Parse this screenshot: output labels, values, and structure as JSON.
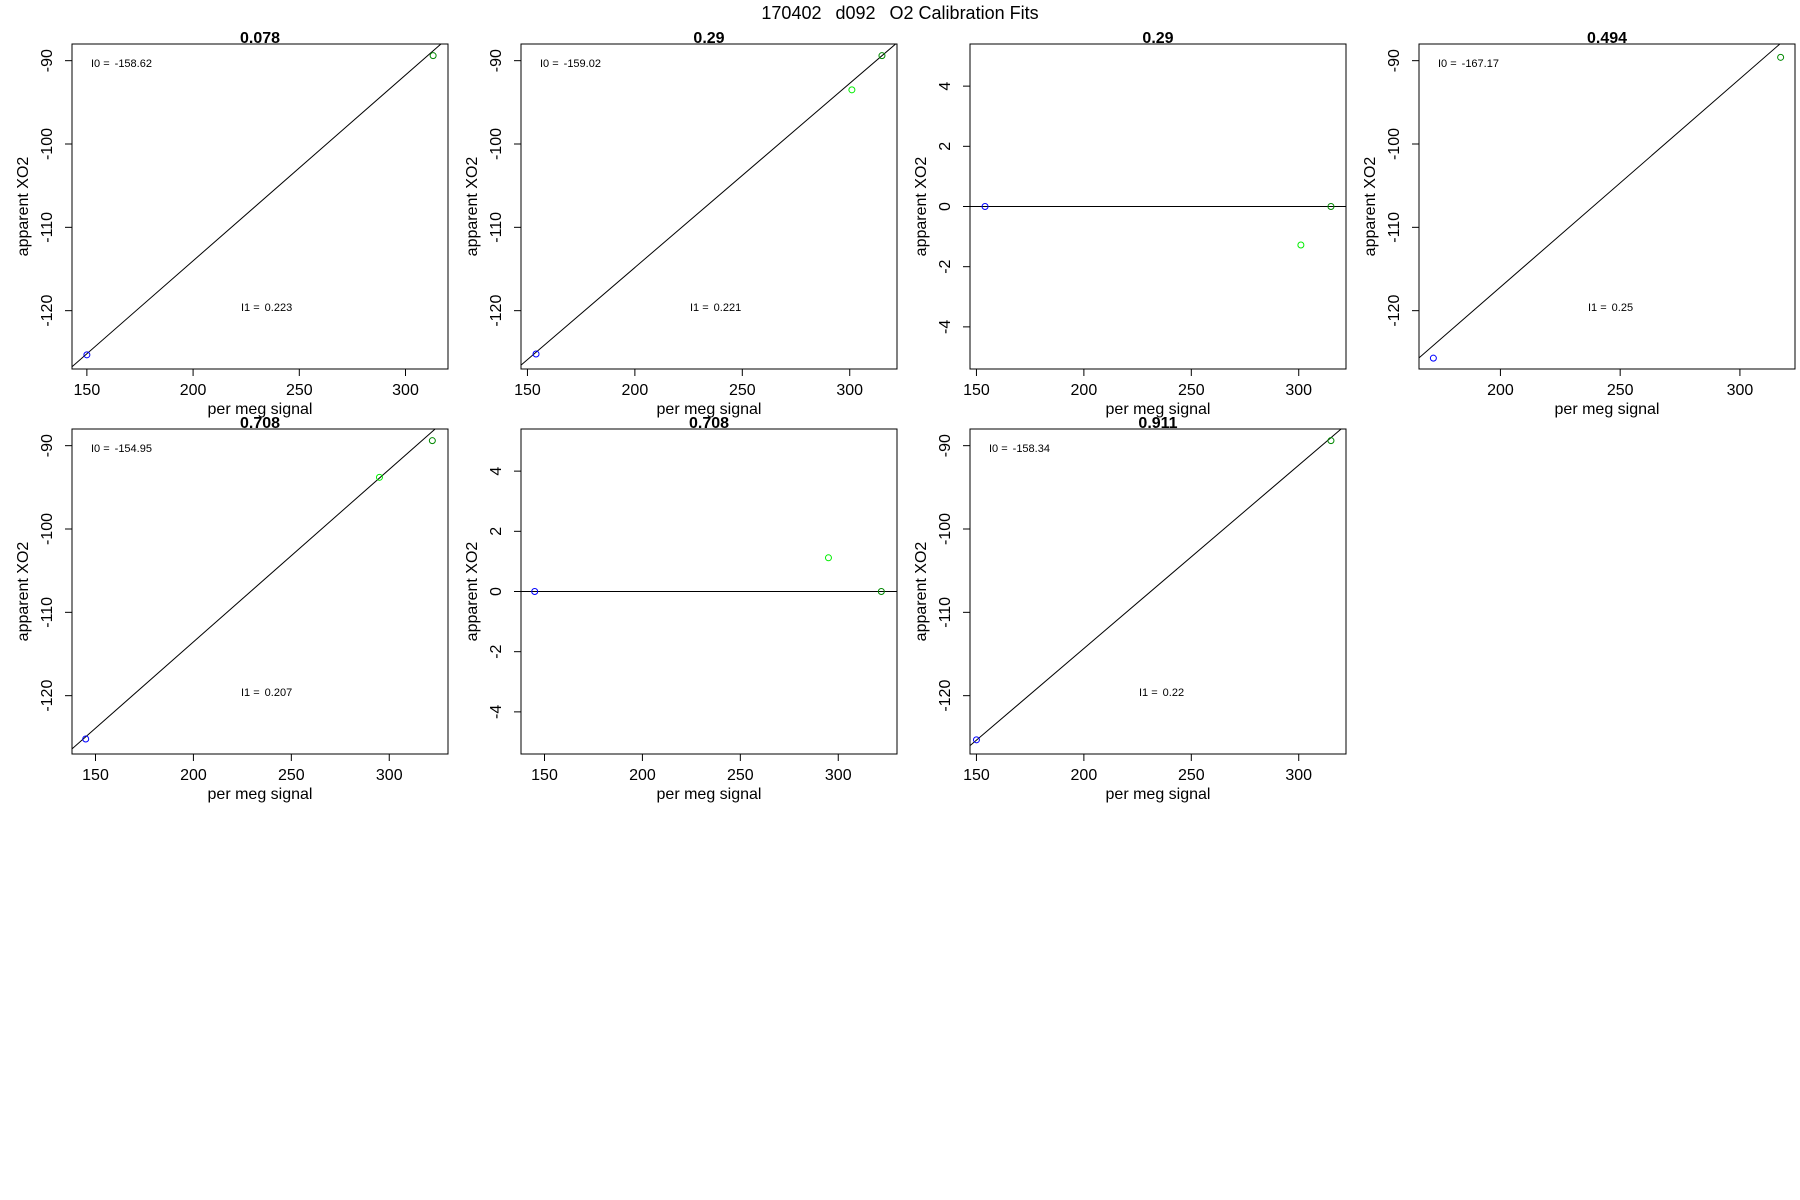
{
  "figure": {
    "title_parts": [
      "170402",
      "d092",
      "O2 Calibration Fits"
    ]
  },
  "colors": {
    "low_standard": "#0000ff",
    "high_standard": "#008800",
    "test_standard": "#00ee00",
    "axis": "#000000",
    "fit_line": "#000000"
  },
  "chart_data": [
    {
      "type": "scatter",
      "title": "0.078",
      "xlabel": "per meg signal",
      "ylabel": "apparent XO2",
      "xlim": [
        143,
        320
      ],
      "ylim": [
        -127,
        -88
      ],
      "xticks": [
        150,
        200,
        250,
        300
      ],
      "yticks": [
        -90,
        -100,
        -110,
        -120
      ],
      "points": [
        {
          "x": 150,
          "y": -125.3,
          "series": "low"
        },
        {
          "x": 313,
          "y": -89.4,
          "series": "high"
        }
      ],
      "fit_line": {
        "intercept": -158.62,
        "slope": 0.223
      },
      "annotations": [
        {
          "label": "I0 =",
          "value": "-158.62",
          "pos": "top-left"
        },
        {
          "label": "I1 =",
          "value": "0.223",
          "pos": "bottom-center"
        }
      ]
    },
    {
      "type": "scatter",
      "title": "0.29",
      "xlabel": "per meg signal",
      "ylabel": "apparent XO2",
      "xlim": [
        147,
        322
      ],
      "ylim": [
        -127,
        -88
      ],
      "xticks": [
        150,
        200,
        250,
        300
      ],
      "yticks": [
        -90,
        -100,
        -110,
        -120
      ],
      "points": [
        {
          "x": 154,
          "y": -125.2,
          "series": "low"
        },
        {
          "x": 301,
          "y": -93.5,
          "series": "test"
        },
        {
          "x": 315,
          "y": -89.4,
          "series": "high"
        }
      ],
      "fit_line": {
        "intercept": -159.02,
        "slope": 0.221
      },
      "annotations": [
        {
          "label": "I0 =",
          "value": "-159.02",
          "pos": "top-left"
        },
        {
          "label": "I1 =",
          "value": "0.221",
          "pos": "bottom-center"
        }
      ]
    },
    {
      "type": "scatter",
      "title": "0.29",
      "xlabel": "per meg signal",
      "ylabel": "apparent XO2",
      "xlim": [
        147,
        322
      ],
      "ylim": [
        -5.4,
        5.4
      ],
      "xticks": [
        150,
        200,
        250,
        300
      ],
      "yticks": [
        4,
        2,
        0,
        -2,
        -4
      ],
      "points": [
        {
          "x": 154,
          "y": 0,
          "series": "low"
        },
        {
          "x": 301,
          "y": -1.28,
          "series": "test"
        },
        {
          "x": 315,
          "y": 0,
          "series": "high"
        }
      ],
      "zero_line": true,
      "annotations": []
    },
    {
      "type": "scatter",
      "title": "0.494",
      "xlabel": "per meg signal",
      "ylabel": "apparent XO2",
      "xlim": [
        166,
        323
      ],
      "ylim": [
        -127,
        -88
      ],
      "xticks": [
        200,
        250,
        300
      ],
      "yticks": [
        -90,
        -100,
        -110,
        -120
      ],
      "points": [
        {
          "x": 172,
          "y": -125.7,
          "series": "low"
        },
        {
          "x": 317,
          "y": -89.6,
          "series": "high"
        }
      ],
      "fit_line": {
        "intercept": -167.17,
        "slope": 0.25
      },
      "annotations": [
        {
          "label": "I0 =",
          "value": "-167.17",
          "pos": "top-left"
        },
        {
          "label": "I1 =",
          "value": "0.25",
          "pos": "bottom-center"
        }
      ]
    },
    {
      "type": "scatter",
      "title": "0.708",
      "xlabel": "per meg signal",
      "ylabel": "apparent XO2",
      "xlim": [
        138,
        330
      ],
      "ylim": [
        -127,
        -88
      ],
      "xticks": [
        150,
        200,
        250,
        300
      ],
      "yticks": [
        -90,
        -100,
        -110,
        -120
      ],
      "points": [
        {
          "x": 145,
          "y": -125.2,
          "series": "low"
        },
        {
          "x": 295,
          "y": -93.8,
          "series": "test"
        },
        {
          "x": 322,
          "y": -89.4,
          "series": "high"
        }
      ],
      "fit_line": {
        "intercept": -154.95,
        "slope": 0.207
      },
      "annotations": [
        {
          "label": "I0 =",
          "value": "-154.95",
          "pos": "top-left"
        },
        {
          "label": "I1 =",
          "value": "0.207",
          "pos": "bottom-center"
        }
      ]
    },
    {
      "type": "scatter",
      "title": "0.708",
      "xlabel": "per meg signal",
      "ylabel": "apparent XO2",
      "xlim": [
        138,
        330
      ],
      "ylim": [
        -5.4,
        5.4
      ],
      "xticks": [
        150,
        200,
        250,
        300
      ],
      "yticks": [
        4,
        2,
        0,
        -2,
        -4
      ],
      "points": [
        {
          "x": 145,
          "y": 0,
          "series": "low"
        },
        {
          "x": 295,
          "y": 1.12,
          "series": "test"
        },
        {
          "x": 322,
          "y": 0,
          "series": "high"
        }
      ],
      "zero_line": true,
      "annotations": []
    },
    {
      "type": "scatter",
      "title": "0.911",
      "xlabel": "per meg signal",
      "ylabel": "apparent XO2",
      "xlim": [
        147,
        322
      ],
      "ylim": [
        -127,
        -88
      ],
      "xticks": [
        150,
        200,
        250,
        300
      ],
      "yticks": [
        -90,
        -100,
        -110,
        -120
      ],
      "points": [
        {
          "x": 150,
          "y": -125.3,
          "series": "low"
        },
        {
          "x": 315,
          "y": -89.4,
          "series": "high"
        }
      ],
      "fit_line": {
        "intercept": -158.34,
        "slope": 0.22
      },
      "annotations": [
        {
          "label": "I0 =",
          "value": "-158.34",
          "pos": "top-left"
        },
        {
          "label": "I1 =",
          "value": "0.22",
          "pos": "bottom-center"
        }
      ]
    }
  ]
}
